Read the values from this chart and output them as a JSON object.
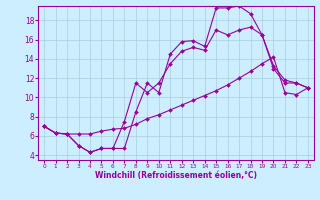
{
  "xlabel": "Windchill (Refroidissement éolien,°C)",
  "background_color": "#cceeff",
  "plot_bg_color": "#cceeff",
  "line_color": "#990099",
  "grid_color": "#aaccdd",
  "xlim": [
    -0.5,
    23.5
  ],
  "ylim": [
    3.5,
    19.5
  ],
  "xticks": [
    0,
    1,
    2,
    3,
    4,
    5,
    6,
    7,
    8,
    9,
    10,
    11,
    12,
    13,
    14,
    15,
    16,
    17,
    18,
    19,
    20,
    21,
    22,
    23
  ],
  "yticks": [
    4,
    6,
    8,
    10,
    12,
    14,
    16,
    18
  ],
  "line1_x": [
    0,
    1,
    2,
    3,
    4,
    5,
    6,
    7,
    8,
    9,
    10,
    11,
    12,
    13,
    14,
    15,
    16,
    17,
    18,
    19,
    20,
    21,
    22,
    23
  ],
  "line1_y": [
    7.0,
    6.3,
    6.2,
    5.0,
    4.3,
    4.7,
    4.7,
    4.7,
    8.5,
    11.5,
    10.5,
    14.5,
    15.8,
    15.9,
    15.3,
    19.3,
    19.3,
    19.5,
    18.7,
    16.5,
    13.3,
    11.8,
    11.5,
    11.0
  ],
  "line2_x": [
    0,
    1,
    2,
    3,
    4,
    5,
    6,
    7,
    8,
    9,
    10,
    11,
    12,
    13,
    14,
    15,
    16,
    17,
    18,
    19,
    20,
    21,
    22,
    23
  ],
  "line2_y": [
    7.0,
    6.3,
    6.2,
    5.0,
    4.3,
    4.7,
    4.7,
    7.5,
    11.5,
    10.5,
    11.5,
    13.5,
    14.8,
    15.2,
    14.9,
    17.0,
    16.5,
    17.0,
    17.3,
    16.5,
    13.0,
    11.5,
    11.5,
    11.0
  ],
  "line3_x": [
    0,
    1,
    2,
    3,
    4,
    5,
    6,
    7,
    8,
    9,
    10,
    11,
    12,
    13,
    14,
    15,
    16,
    17,
    18,
    19,
    20,
    21,
    22,
    23
  ],
  "line3_y": [
    7.0,
    6.3,
    6.2,
    6.2,
    6.2,
    6.5,
    6.7,
    6.8,
    7.2,
    7.8,
    8.2,
    8.7,
    9.2,
    9.7,
    10.2,
    10.7,
    11.3,
    12.0,
    12.7,
    13.5,
    14.2,
    10.5,
    10.3,
    11.0
  ]
}
